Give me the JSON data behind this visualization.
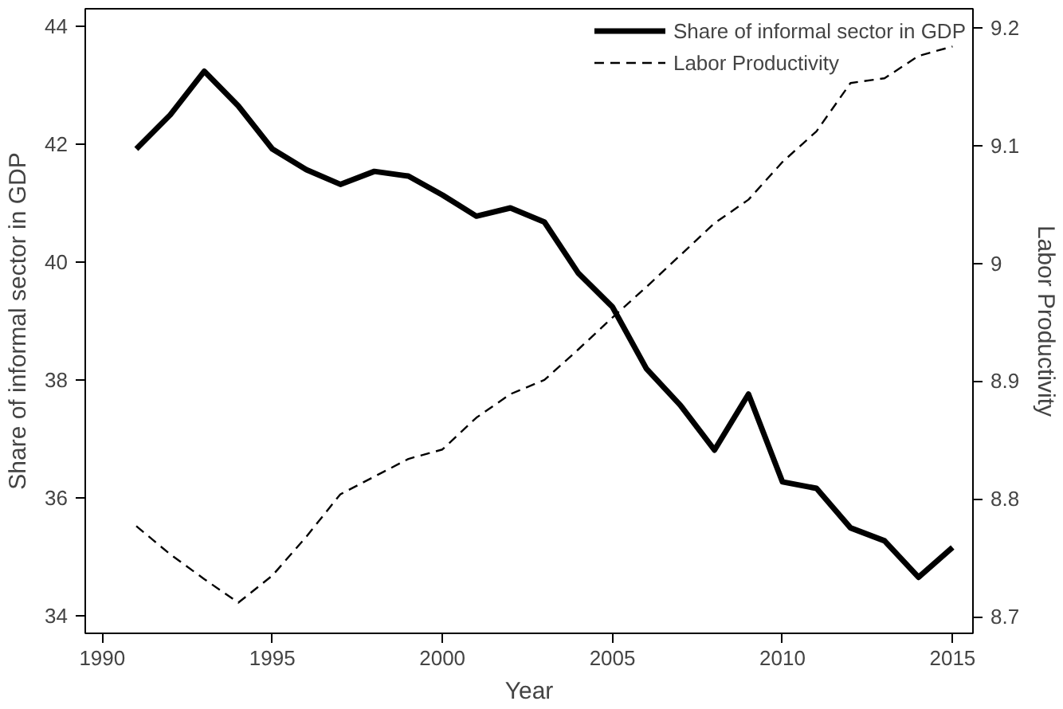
{
  "chart_data": {
    "type": "line",
    "xlabel": "Year",
    "ylabel": "Share of informal sector in GDP",
    "y2label": "Labor Productivity",
    "x": [
      1991,
      1992,
      1993,
      1994,
      1995,
      1996,
      1997,
      1998,
      1999,
      2000,
      2001,
      2002,
      2003,
      2004,
      2005,
      2006,
      2007,
      2008,
      2009,
      2010,
      2011,
      2012,
      2013,
      2014,
      2015
    ],
    "series": [
      {
        "name": "Share of informal sector in GDP",
        "color": "#000000",
        "line_style": "solid",
        "values": [
          41.92,
          42.5,
          43.24,
          42.65,
          41.92,
          41.57,
          41.32,
          41.54,
          41.46,
          41.14,
          40.78,
          40.92,
          40.68,
          39.81,
          39.24,
          38.19,
          37.57,
          36.81,
          37.76,
          36.27,
          36.16,
          35.49,
          35.27,
          34.65,
          35.16
        ]
      },
      {
        "name": "Labor Productivity",
        "color": "#000000",
        "line_style": "dashed",
        "axis": "y2",
        "values": [
          8.777,
          8.753,
          8.732,
          8.712,
          8.735,
          8.768,
          8.804,
          8.819,
          8.834,
          8.842,
          8.869,
          8.889,
          8.901,
          8.927,
          8.954,
          8.98,
          9.007,
          9.034,
          9.054,
          9.086,
          9.112,
          9.153,
          9.157,
          9.176,
          9.184
        ]
      }
    ],
    "xlim": [
      1989.5,
      2015.6
    ],
    "xticks": [
      1990,
      1995,
      2000,
      2005,
      2010,
      2015
    ],
    "ylim": [
      33.7,
      44.3
    ],
    "yticks": [
      34,
      36,
      38,
      40,
      42,
      44
    ],
    "y2lim": [
      8.686,
      9.216
    ],
    "y2ticks": [
      8.7,
      8.8,
      8.9,
      {
        "value": 9,
        "label": "9"
      },
      9.1,
      9.2
    ],
    "grid": false,
    "legend": "top right"
  }
}
